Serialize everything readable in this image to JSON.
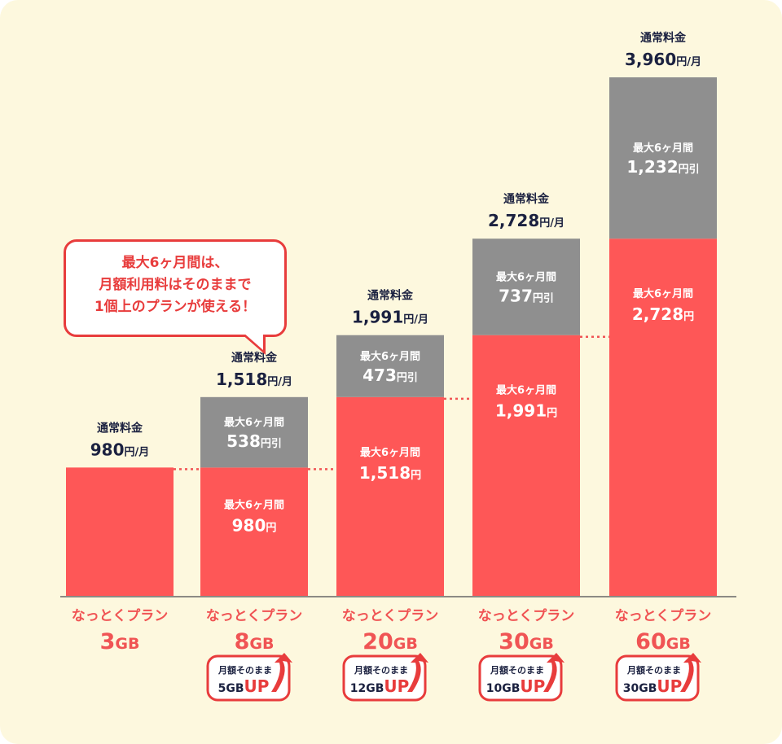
{
  "callout": {
    "lines": [
      "最大6ヶ月間は、",
      "月額利用料はそのままで",
      "1個上のプランが使える！"
    ]
  },
  "colors": {
    "red": "#fe5757",
    "gray": "#8f8f8f",
    "background": "#fdf8de",
    "accent_red": "#e83c3c",
    "text_dark": "#1b2140"
  },
  "chart_data": {
    "type": "bar",
    "stacked": true,
    "ylim": [
      0,
      4200
    ],
    "categories": [
      "なっとくプラン 3GB",
      "なっとくプラン 8GB",
      "なっとくプラン 20GB",
      "なっとくプラン 30GB",
      "なっとくプラン 60GB"
    ],
    "plans": [
      {
        "plan_name": "なっとくプラン",
        "capacity": "3",
        "unit": "GB",
        "regular_label": "通常料金",
        "regular_price": "980",
        "regular_unit": "円/月",
        "values": {
          "discounted": 980,
          "discount": 0
        }
      },
      {
        "plan_name": "なっとくプラン",
        "capacity": "8",
        "unit": "GB",
        "regular_label": "通常料金",
        "regular_price": "1,518",
        "regular_unit": "円/月",
        "values": {
          "discounted": 980,
          "discount": 538
        },
        "discount_label": "最大6ヶ月間",
        "discount_text": "538",
        "discount_unit": "円引",
        "discounted_label": "最大6ヶ月間",
        "discounted_text": "980",
        "discounted_unit": "円",
        "badge": {
          "line1": "月額そのまま",
          "amount": "5GB",
          "up": "UP"
        }
      },
      {
        "plan_name": "なっとくプラン",
        "capacity": "20",
        "unit": "GB",
        "regular_label": "通常料金",
        "regular_price": "1,991",
        "regular_unit": "円/月",
        "values": {
          "discounted": 1518,
          "discount": 473
        },
        "discount_label": "最大6ヶ月間",
        "discount_text": "473",
        "discount_unit": "円引",
        "discounted_label": "最大6ヶ月間",
        "discounted_text": "1,518",
        "discounted_unit": "円",
        "badge": {
          "line1": "月額そのまま",
          "amount": "12GB",
          "up": "UP"
        }
      },
      {
        "plan_name": "なっとくプラン",
        "capacity": "30",
        "unit": "GB",
        "regular_label": "通常料金",
        "regular_price": "2,728",
        "regular_unit": "円/月",
        "values": {
          "discounted": 1991,
          "discount": 737
        },
        "discount_label": "最大6ヶ月間",
        "discount_text": "737",
        "discount_unit": "円引",
        "discounted_label": "最大6ヶ月間",
        "discounted_text": "1,991",
        "discounted_unit": "円",
        "badge": {
          "line1": "月額そのまま",
          "amount": "10GB",
          "up": "UP"
        }
      },
      {
        "plan_name": "なっとくプラン",
        "capacity": "60",
        "unit": "GB",
        "regular_label": "通常料金",
        "regular_price": "3,960",
        "regular_unit": "円/月",
        "values": {
          "discounted": 2728,
          "discount": 1232
        },
        "discount_label": "最大6ヶ月間",
        "discount_text": "1,232",
        "discount_unit": "円引",
        "discounted_label": "最大6ヶ月間",
        "discounted_text": "2,728",
        "discounted_unit": "円",
        "badge": {
          "line1": "月額そのまま",
          "amount": "30GB",
          "up": "UP"
        }
      }
    ]
  }
}
